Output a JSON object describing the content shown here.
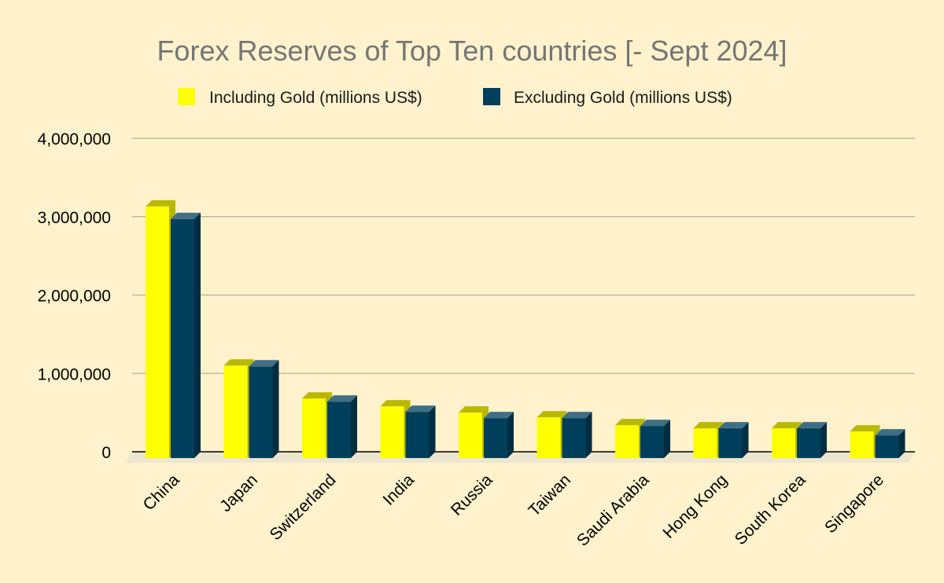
{
  "chart_data": {
    "type": "bar",
    "title": "Forex Reserves of Top Ten countries [- Sept 2024]",
    "categories": [
      "China",
      "Japan",
      "Switzerland",
      "India",
      "Russia",
      "Taiwan",
      "Saudi Arabia",
      "Hong Kong",
      "South Korea",
      "Singapore"
    ],
    "series": [
      {
        "name": "Including Gold (millions US$)",
        "color": "#FFFF00",
        "values": [
          3210000,
          1180000,
          760000,
          660000,
          580000,
          520000,
          420000,
          380000,
          380000,
          340000
        ]
      },
      {
        "name": "Excluding Gold (millions US$)",
        "color": "#003F5C",
        "values": [
          3050000,
          1170000,
          720000,
          590000,
          510000,
          510000,
          410000,
          380000,
          380000,
          290000
        ]
      }
    ],
    "yticks": [
      "0",
      "1,000,000",
      "2,000,000",
      "3,000,000",
      "4,000,000"
    ],
    "ylim": [
      0,
      4000000
    ],
    "grid": true,
    "legend_position": "top"
  }
}
